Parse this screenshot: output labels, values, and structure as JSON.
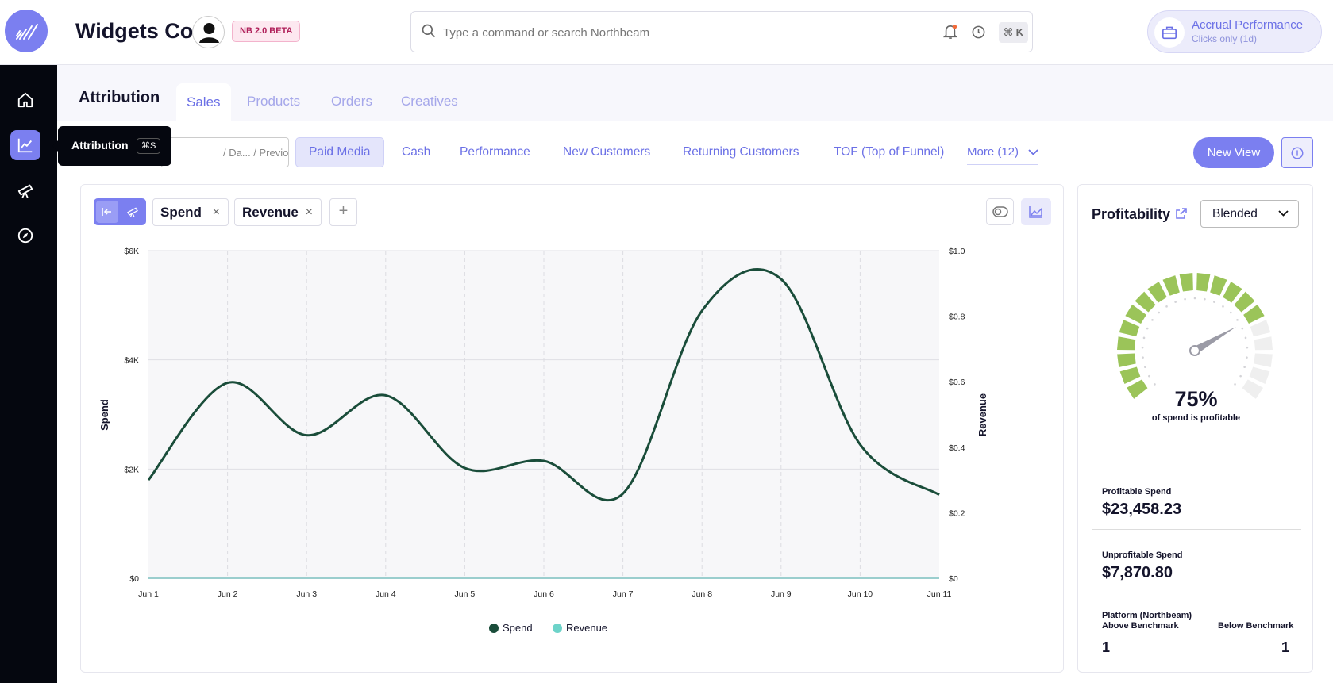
{
  "app": {
    "brand": "Widgets Co",
    "beta_badge": "NB 2.0 BETA"
  },
  "search": {
    "placeholder": "Type a command or search Northbeam",
    "shortcut": "⌘ K"
  },
  "accrual": {
    "title": "Accrual Performance",
    "subtitle": "Clicks only (1d)"
  },
  "tooltip": {
    "label": "Attribution",
    "shortcut": "⌘S"
  },
  "header": {
    "section_title": "Attribution",
    "tabs": [
      {
        "label": "Sales",
        "active": true
      },
      {
        "label": "Products",
        "active": false
      },
      {
        "label": "Orders",
        "active": false
      },
      {
        "label": "Creatives",
        "active": false
      }
    ]
  },
  "toolbar": {
    "date_text": "/ Da... / Previous pe...",
    "views": [
      {
        "label": "Paid Media",
        "active": true
      },
      {
        "label": "Cash"
      },
      {
        "label": "Performance"
      },
      {
        "label": "New Customers"
      },
      {
        "label": "Returning Customers"
      },
      {
        "label": "TOF (Top of Funnel)"
      }
    ],
    "more_label": "More (12)",
    "new_view_label": "New View"
  },
  "metrics_bar": {
    "pills": [
      "Spend",
      "Revenue"
    ],
    "remove_glyph": "×",
    "add_glyph": "+"
  },
  "chart_data": {
    "type": "line",
    "x": [
      "Jun 1",
      "Jun 2",
      "Jun 3",
      "Jun 4",
      "Jun 5",
      "Jun 6",
      "Jun 7",
      "Jun 8",
      "Jun 9",
      "Jun 10",
      "Jun 11"
    ],
    "series": [
      {
        "name": "Spend",
        "axis": "left",
        "color": "#1a4d3a",
        "values": [
          1800,
          3580,
          2620,
          3350,
          2020,
          2150,
          1550,
          4900,
          5480,
          2450,
          1530
        ]
      },
      {
        "name": "Revenue",
        "axis": "right",
        "color": "#6dd3c9",
        "values": [
          0,
          0,
          0,
          0,
          0,
          0,
          0,
          0,
          0,
          0,
          0
        ]
      }
    ],
    "ylabel": "Spend",
    "ylabel_right": "Revenue",
    "ylim": [
      0,
      6000
    ],
    "ylim_right": [
      0,
      1.0
    ],
    "yticks": [
      "$0",
      "$2K",
      "$4K",
      "$6K"
    ],
    "yticks_right": [
      "$0",
      "$0.2",
      "$0.4",
      "$0.6",
      "$0.8",
      "$1.0"
    ],
    "legend": [
      "Spend",
      "Revenue"
    ],
    "legend_position": "bottom",
    "grid": true
  },
  "profitability": {
    "title": "Profitability",
    "mode": "Blended",
    "percent": "75%",
    "percent_caption": "of spend is profitable",
    "gauge_fraction": 0.75,
    "profitable_spend_label": "Profitable Spend",
    "profitable_spend_value": "$23,458.23",
    "unprofitable_spend_label": "Unprofitable Spend",
    "unprofitable_spend_value": "$7,870.80",
    "above_label_line1": "Platform (Northbeam)",
    "above_label_line2": "Above Benchmark",
    "below_label": "Below Benchmark",
    "above_count": "1",
    "below_count": "1"
  },
  "colors": {
    "accent": "#7b7ff0",
    "gauge_on": "#9bc459",
    "gauge_off": "#efefef"
  }
}
